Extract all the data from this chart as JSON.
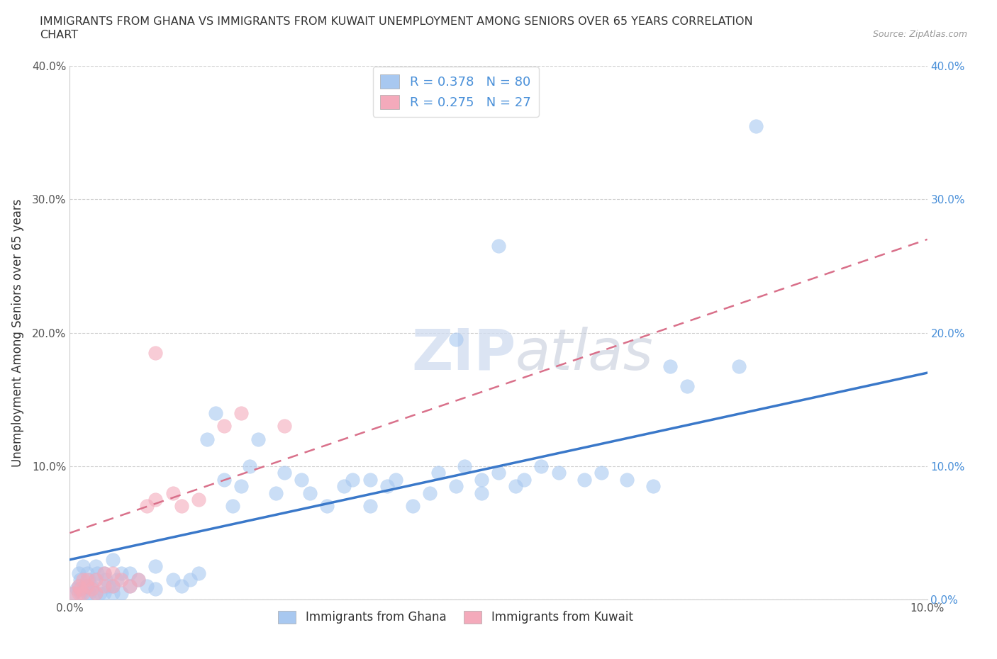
{
  "title_line1": "IMMIGRANTS FROM GHANA VS IMMIGRANTS FROM KUWAIT UNEMPLOYMENT AMONG SENIORS OVER 65 YEARS CORRELATION",
  "title_line2": "CHART",
  "source_text": "Source: ZipAtlas.com",
  "ylabel": "Unemployment Among Seniors over 65 years",
  "xlim": [
    0.0,
    0.1
  ],
  "ylim": [
    0.0,
    0.4
  ],
  "xticks": [
    0.0,
    0.1
  ],
  "yticks": [
    0.0,
    0.1,
    0.2,
    0.3,
    0.4
  ],
  "xtick_labels": [
    "0.0%",
    "10.0%"
  ],
  "ytick_labels_left": [
    "",
    "10.0%",
    "20.0%",
    "30.0%",
    "40.0%"
  ],
  "ytick_labels_right": [
    "0.0%",
    "10.0%",
    "20.0%",
    "30.0%",
    "40.0%"
  ],
  "ghana_color": "#A8C8F0",
  "kuwait_color": "#F4AABB",
  "ghana_R": 0.378,
  "ghana_N": 80,
  "kuwait_R": 0.275,
  "kuwait_N": 27,
  "ghana_label": "Immigrants from Ghana",
  "kuwait_label": "Immigrants from Kuwait",
  "trend_color_ghana": "#3A78C9",
  "trend_color_kuwait": "#D9708A",
  "ghana_trend_y0": 0.03,
  "ghana_trend_y1": 0.17,
  "kuwait_trend_y0": 0.05,
  "kuwait_trend_y1": 0.27,
  "ghana_x": [
    0.0005,
    0.0008,
    0.001,
    0.001,
    0.0012,
    0.0013,
    0.0015,
    0.0015,
    0.0017,
    0.002,
    0.002,
    0.002,
    0.0022,
    0.0023,
    0.0025,
    0.003,
    0.003,
    0.003,
    0.0032,
    0.0035,
    0.004,
    0.004,
    0.0042,
    0.0045,
    0.005,
    0.005,
    0.005,
    0.0055,
    0.006,
    0.006,
    0.007,
    0.007,
    0.008,
    0.009,
    0.01,
    0.01,
    0.012,
    0.013,
    0.014,
    0.015,
    0.016,
    0.017,
    0.018,
    0.019,
    0.02,
    0.021,
    0.022,
    0.024,
    0.025,
    0.027,
    0.028,
    0.03,
    0.032,
    0.033,
    0.035,
    0.035,
    0.037,
    0.038,
    0.04,
    0.042,
    0.043,
    0.045,
    0.046,
    0.048,
    0.048,
    0.05,
    0.052,
    0.053,
    0.055,
    0.057,
    0.06,
    0.062,
    0.065,
    0.068,
    0.07,
    0.072,
    0.078,
    0.05,
    0.045,
    0.08
  ],
  "ghana_y": [
    0.005,
    0.008,
    0.01,
    0.02,
    0.015,
    0.005,
    0.008,
    0.025,
    0.01,
    0.005,
    0.01,
    0.02,
    0.015,
    0.005,
    0.01,
    0.005,
    0.015,
    0.025,
    0.02,
    0.005,
    0.005,
    0.02,
    0.015,
    0.01,
    0.005,
    0.01,
    0.03,
    0.015,
    0.005,
    0.02,
    0.01,
    0.02,
    0.015,
    0.01,
    0.008,
    0.025,
    0.015,
    0.01,
    0.015,
    0.02,
    0.12,
    0.14,
    0.09,
    0.07,
    0.085,
    0.1,
    0.12,
    0.08,
    0.095,
    0.09,
    0.08,
    0.07,
    0.085,
    0.09,
    0.07,
    0.09,
    0.085,
    0.09,
    0.07,
    0.08,
    0.095,
    0.085,
    0.1,
    0.08,
    0.09,
    0.095,
    0.085,
    0.09,
    0.1,
    0.095,
    0.09,
    0.095,
    0.09,
    0.085,
    0.175,
    0.16,
    0.175,
    0.265,
    0.195,
    0.355
  ],
  "kuwait_x": [
    0.0005,
    0.001,
    0.001,
    0.0012,
    0.0015,
    0.0015,
    0.002,
    0.002,
    0.0025,
    0.003,
    0.003,
    0.004,
    0.004,
    0.005,
    0.005,
    0.006,
    0.007,
    0.008,
    0.009,
    0.01,
    0.012,
    0.013,
    0.015,
    0.018,
    0.02,
    0.025,
    0.01
  ],
  "kuwait_y": [
    0.005,
    0.005,
    0.01,
    0.008,
    0.005,
    0.015,
    0.01,
    0.015,
    0.008,
    0.005,
    0.015,
    0.01,
    0.02,
    0.01,
    0.02,
    0.015,
    0.01,
    0.015,
    0.07,
    0.075,
    0.08,
    0.07,
    0.075,
    0.13,
    0.14,
    0.13,
    0.185
  ]
}
